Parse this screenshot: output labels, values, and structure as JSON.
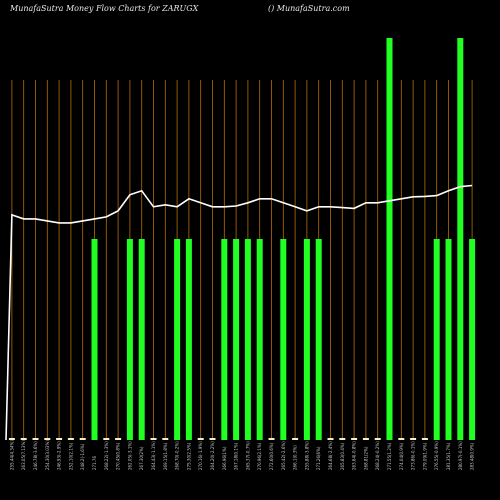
{
  "header": {
    "title": "MunafaSutra  Money Flow  Charts for ZARUGX",
    "source": "() MunafaSutra.com"
  },
  "chart_data": {
    "type": "bar",
    "title": "MunafaSutra  Money Flow  Charts for ZARUGX",
    "colors": {
      "background": "#000000",
      "bar": "#22ff22",
      "baseline_bar": "#f5f0c8",
      "grid": "#b86a0a",
      "line": "#ffffff"
    },
    "categories": [
      "255.44(4.34%)",
      "263.05(7.13%)",
      "246.78(-3.6%)",
      "254.30(3.03%)",
      "246.93(-2.9%)",
      "252.10(2.1%)",
      "248.2(-1.6%)",
      "271.76",
      "268.22(-1.3%)",
      "270.45(0.8%)",
      "262.05(-3.1%)",
      "267.30(2%)",
      "264.43(-1.1%)",
      "269.15(1.8%)",
      "268.70(-0.2%)",
      "275.30(2.5%)",
      "270.16(-1.9%)",
      "264.20(-2.2%)",
      "266.96(1%)",
      "267.18(0.1%)",
      "265.37(-0.7%)",
      "270.96(2.1%)",
      "272.60(0.6%)",
      "265.42(-2.6%)",
      "266.1(0.3%)",
      "255.88(-3.8%)",
      "271.26(6%)",
      "264.68(-2.4%)",
      "265.83(0.4%)",
      "263.64(-0.8%)",
      "268.81(2%)",
      "268.24(-0.2%)",
      "271.55(1.2%)",
      "274.04(0.9%)",
      "273.86(-0.1%)",
      "279.09(1.9%)",
      "276.55(-0.9%)",
      "281.35(1.7%)",
      "280.97(-0.1%)",
      "283.48(0.9%)"
    ],
    "money_flow": [
      0,
      0,
      0,
      0,
      0,
      0,
      0,
      50,
      0,
      0,
      50,
      50,
      0,
      0,
      50,
      50,
      0,
      0,
      50,
      50,
      50,
      50,
      0,
      50,
      0,
      50,
      50,
      0,
      0,
      0,
      0,
      0,
      100,
      0,
      0,
      0,
      50,
      50,
      100,
      50
    ],
    "price_line": [
      56,
      55,
      55,
      54.5,
      54,
      54,
      54.5,
      55,
      55.5,
      57,
      61,
      62,
      58,
      58.5,
      58,
      60,
      59,
      58,
      58,
      58.2,
      59,
      60,
      60,
      59,
      58,
      57,
      58,
      58,
      57.8,
      57.6,
      59,
      59,
      59.5,
      60,
      60.5,
      60.6,
      60.8,
      62,
      63,
      63.3
    ],
    "ylim": [
      0,
      100
    ]
  }
}
